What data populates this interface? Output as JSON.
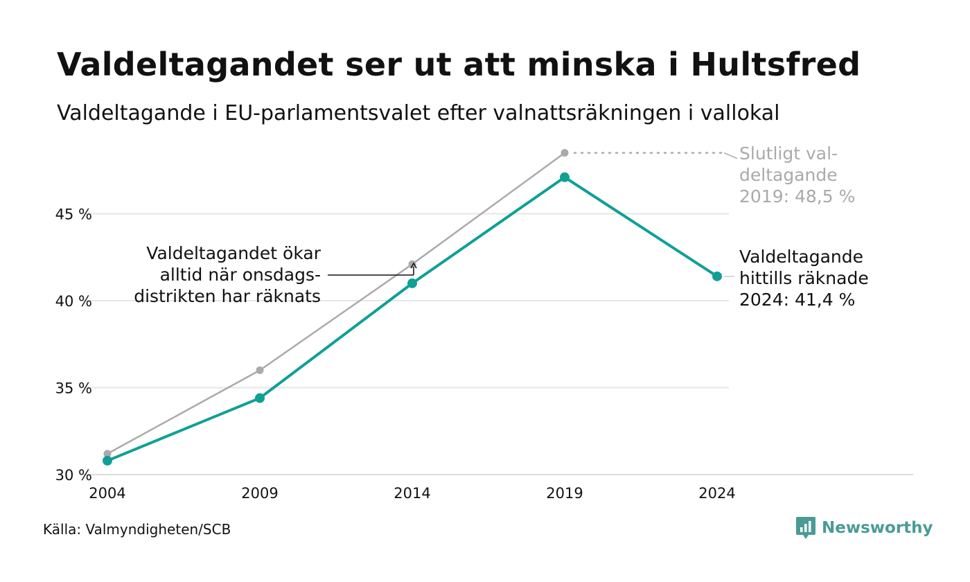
{
  "title": "Valdeltagandet ser ut att minska i Hultsfred",
  "subtitle": "Valdeltagande i EU-parlamentsvalet efter valnattsräkningen i vallokal",
  "source": "Källa: Valmyndigheten/SCB",
  "brand": {
    "name": "Newsworthy",
    "color": "#4a9b95",
    "icon": "bar-chart-bubble-icon"
  },
  "colors": {
    "primary": "#0fa095",
    "final": "#aaaaaa",
    "grid": "#e6e6e6",
    "text": "#111111"
  },
  "chart_data": {
    "type": "line",
    "title": "Valdeltagandet ser ut att minska i Hultsfred",
    "subtitle": "Valdeltagande i EU-parlamentsvalet efter valnattsräkningen i vallokal",
    "x": [
      2004,
      2009,
      2014,
      2019,
      2024
    ],
    "x_tick_labels": [
      "2004",
      "2009",
      "2014",
      "2019",
      "2024"
    ],
    "y_ticks": [
      30,
      35,
      40,
      45
    ],
    "y_tick_labels": [
      "30 %",
      "35 %",
      "40 %",
      "45 %"
    ],
    "ylim": [
      29.5,
      49
    ],
    "grid": true,
    "series": [
      {
        "key": "final",
        "color": "#aaaaaa",
        "x": [
          2004,
          2009,
          2014,
          2019
        ],
        "values": [
          31.2,
          36.0,
          42.1,
          48.5
        ]
      },
      {
        "key": "count",
        "color": "#0fa095",
        "x": [
          2004,
          2009,
          2014,
          2019,
          2024
        ],
        "values": [
          30.8,
          34.4,
          41.0,
          47.1,
          41.4
        ]
      }
    ],
    "annotations": {
      "final_2019": {
        "lines": [
          "Slutligt val-",
          "deltagande",
          "2019: 48,5 %"
        ],
        "color": "#aaaaaa"
      },
      "count_2024": {
        "lines": [
          "Valdeltagande",
          "hittills räknade",
          "2024: 41,4 %"
        ],
        "color": "#111111"
      },
      "wednesday": {
        "lines": [
          "Valdeltagandet ökar",
          "alltid när onsdags-",
          "distrikten har räknats"
        ],
        "color": "#111111"
      }
    }
  }
}
